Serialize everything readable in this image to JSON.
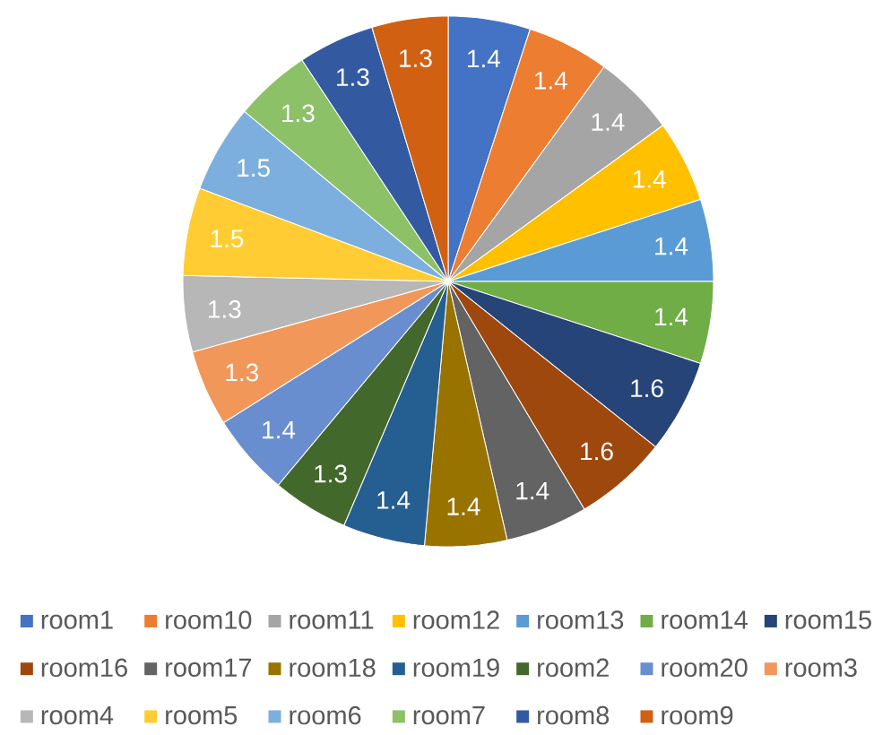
{
  "chart_data": {
    "type": "pie",
    "categories": [
      "room1",
      "room10",
      "room11",
      "room12",
      "room13",
      "room14",
      "room15",
      "room16",
      "room17",
      "room18",
      "room19",
      "room2",
      "room20",
      "room3",
      "room4",
      "room5",
      "room6",
      "room7",
      "room8",
      "room9"
    ],
    "values": [
      1.4,
      1.4,
      1.4,
      1.4,
      1.4,
      1.4,
      1.6,
      1.6,
      1.4,
      1.4,
      1.4,
      1.3,
      1.4,
      1.3,
      1.3,
      1.5,
      1.5,
      1.3,
      1.3,
      1.3
    ],
    "colors": [
      "#4472c4",
      "#ed7d31",
      "#a5a5a5",
      "#ffc000",
      "#5b9bd5",
      "#70ad47",
      "#264478",
      "#9e480e",
      "#636363",
      "#997300",
      "#255e91",
      "#43682b",
      "#698ed0",
      "#f1975a",
      "#b7b7b7",
      "#ffcd33",
      "#7cafdd",
      "#8cc168",
      "#335aa1",
      "#d26012"
    ],
    "data_labels": true,
    "legend": "bottom"
  }
}
